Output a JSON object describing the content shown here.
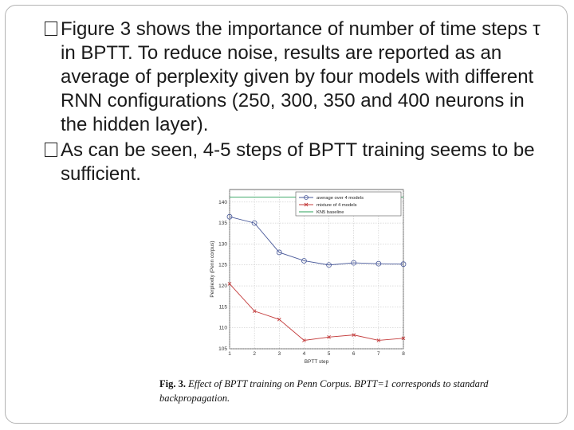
{
  "bullets": [
    {
      "text": "Figure 3 shows the importance of number of time steps τ in BPTT. To reduce noise, results are reported as an average of perplexity given by four models with different RNN configurations (250, 300, 350 and 400 neurons in the hidden layer)."
    },
    {
      "text": "As can be seen, 4-5 steps of BPTT training seems to be sufficient."
    }
  ],
  "caption": {
    "lead": "Fig. 3.",
    "body": "Effect of BPTT training on Penn Corpus. BPTT=1 corresponds to standard backpropagation."
  },
  "colors": {
    "average": "#4a5a9a",
    "mixture": "#c43c3c",
    "baseline": "#2aa05a"
  },
  "chart_data": {
    "type": "line",
    "title": "",
    "xlabel": "BPTT step",
    "ylabel": "Perplexity (Penn corpus)",
    "x": [
      1,
      2,
      3,
      4,
      5,
      6,
      7,
      8
    ],
    "xlim": [
      1,
      8
    ],
    "ylim": [
      105,
      143
    ],
    "yticks": [
      105,
      110,
      115,
      120,
      125,
      130,
      135,
      140
    ],
    "xticks": [
      1,
      2,
      3,
      4,
      5,
      6,
      7,
      8
    ],
    "grid": true,
    "legend_position": "top-right",
    "series": [
      {
        "name": "average over 4 models",
        "marker": "circle",
        "color": "#4a5a9a",
        "values": [
          136.5,
          135.0,
          128.0,
          126.0,
          125.0,
          125.5,
          125.3,
          125.2
        ]
      },
      {
        "name": "mixture of 4 models",
        "marker": "x",
        "color": "#c43c3c",
        "values": [
          120.5,
          114.0,
          112.0,
          107.0,
          107.8,
          108.3,
          107.0,
          107.5
        ]
      },
      {
        "name": "KN5 baseline",
        "marker": "none",
        "color": "#2aa05a",
        "values": [
          141.2,
          141.2,
          141.2,
          141.2,
          141.2,
          141.2,
          141.2,
          141.2
        ]
      }
    ]
  }
}
